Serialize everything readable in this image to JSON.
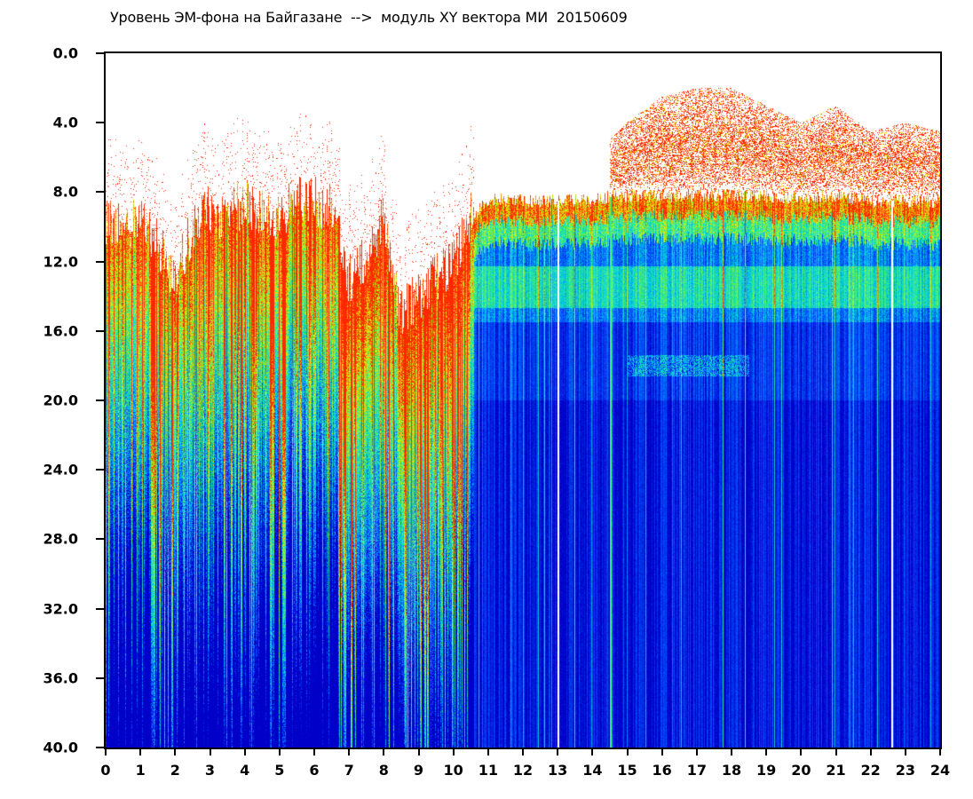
{
  "chart_data": {
    "type": "heatmap",
    "title": "Уровень ЭМ-фона на Байгазане  -->  модуль XY вектора МИ  20150609",
    "xlabel": "",
    "ylabel": "",
    "x_ticks": [
      "0",
      "1",
      "2",
      "3",
      "4",
      "5",
      "6",
      "7",
      "8",
      "9",
      "10",
      "11",
      "12",
      "13",
      "14",
      "15",
      "16",
      "17",
      "18",
      "19",
      "20",
      "21",
      "22",
      "23",
      "24"
    ],
    "y_ticks": [
      "0.0",
      "4.0",
      "8.0",
      "12.0",
      "16.0",
      "20.0",
      "24.0",
      "28.0",
      "32.0",
      "36.0",
      "40.0"
    ],
    "xlim": [
      0,
      24
    ],
    "ylim": [
      0,
      40
    ],
    "y_inverted": true,
    "grid": false,
    "colorscale": [
      "#0000c8",
      "#0050ff",
      "#00c8e6",
      "#3cf07a",
      "#e6f000",
      "#ff2800"
    ],
    "background_color": "#ffffff",
    "top_boundary_profile": {
      "x": [
        0,
        0.5,
        1,
        1.5,
        2,
        2.5,
        3,
        3.5,
        4,
        4.5,
        5,
        5.5,
        6,
        6.5,
        7,
        7.5,
        8,
        8.5,
        9,
        9.5,
        10,
        10.5,
        11,
        12,
        13,
        14,
        14.5,
        15,
        16,
        17,
        18,
        19,
        20,
        21,
        22,
        23,
        24
      ],
      "y": [
        9.5,
        10,
        9.5,
        11,
        13,
        10,
        9,
        9.5,
        8.5,
        9,
        9.5,
        8.5,
        8.5,
        9,
        13,
        12,
        9.5,
        15,
        14,
        13,
        12,
        9.5,
        8.5,
        8.5,
        8.5,
        8.5,
        8.3,
        8.2,
        8.2,
        8.2,
        8.2,
        8.2,
        8.3,
        8.2,
        8.5,
        8.5,
        8.5
      ]
    },
    "upper_red_cloud": {
      "x": [
        14.5,
        15,
        16,
        17,
        18,
        19,
        20,
        21,
        22,
        23,
        24
      ],
      "top": [
        5,
        4,
        2.5,
        2,
        2,
        3,
        4,
        3,
        4.5,
        4,
        4.5
      ]
    },
    "quiet_band_depth_start": 15.5,
    "notable_columns": [
      {
        "x": 13.0,
        "color": "#ffffff"
      },
      {
        "x": 14.5,
        "color": "#3cf07a"
      },
      {
        "x": 22.6,
        "color": "#ffffff"
      }
    ]
  }
}
